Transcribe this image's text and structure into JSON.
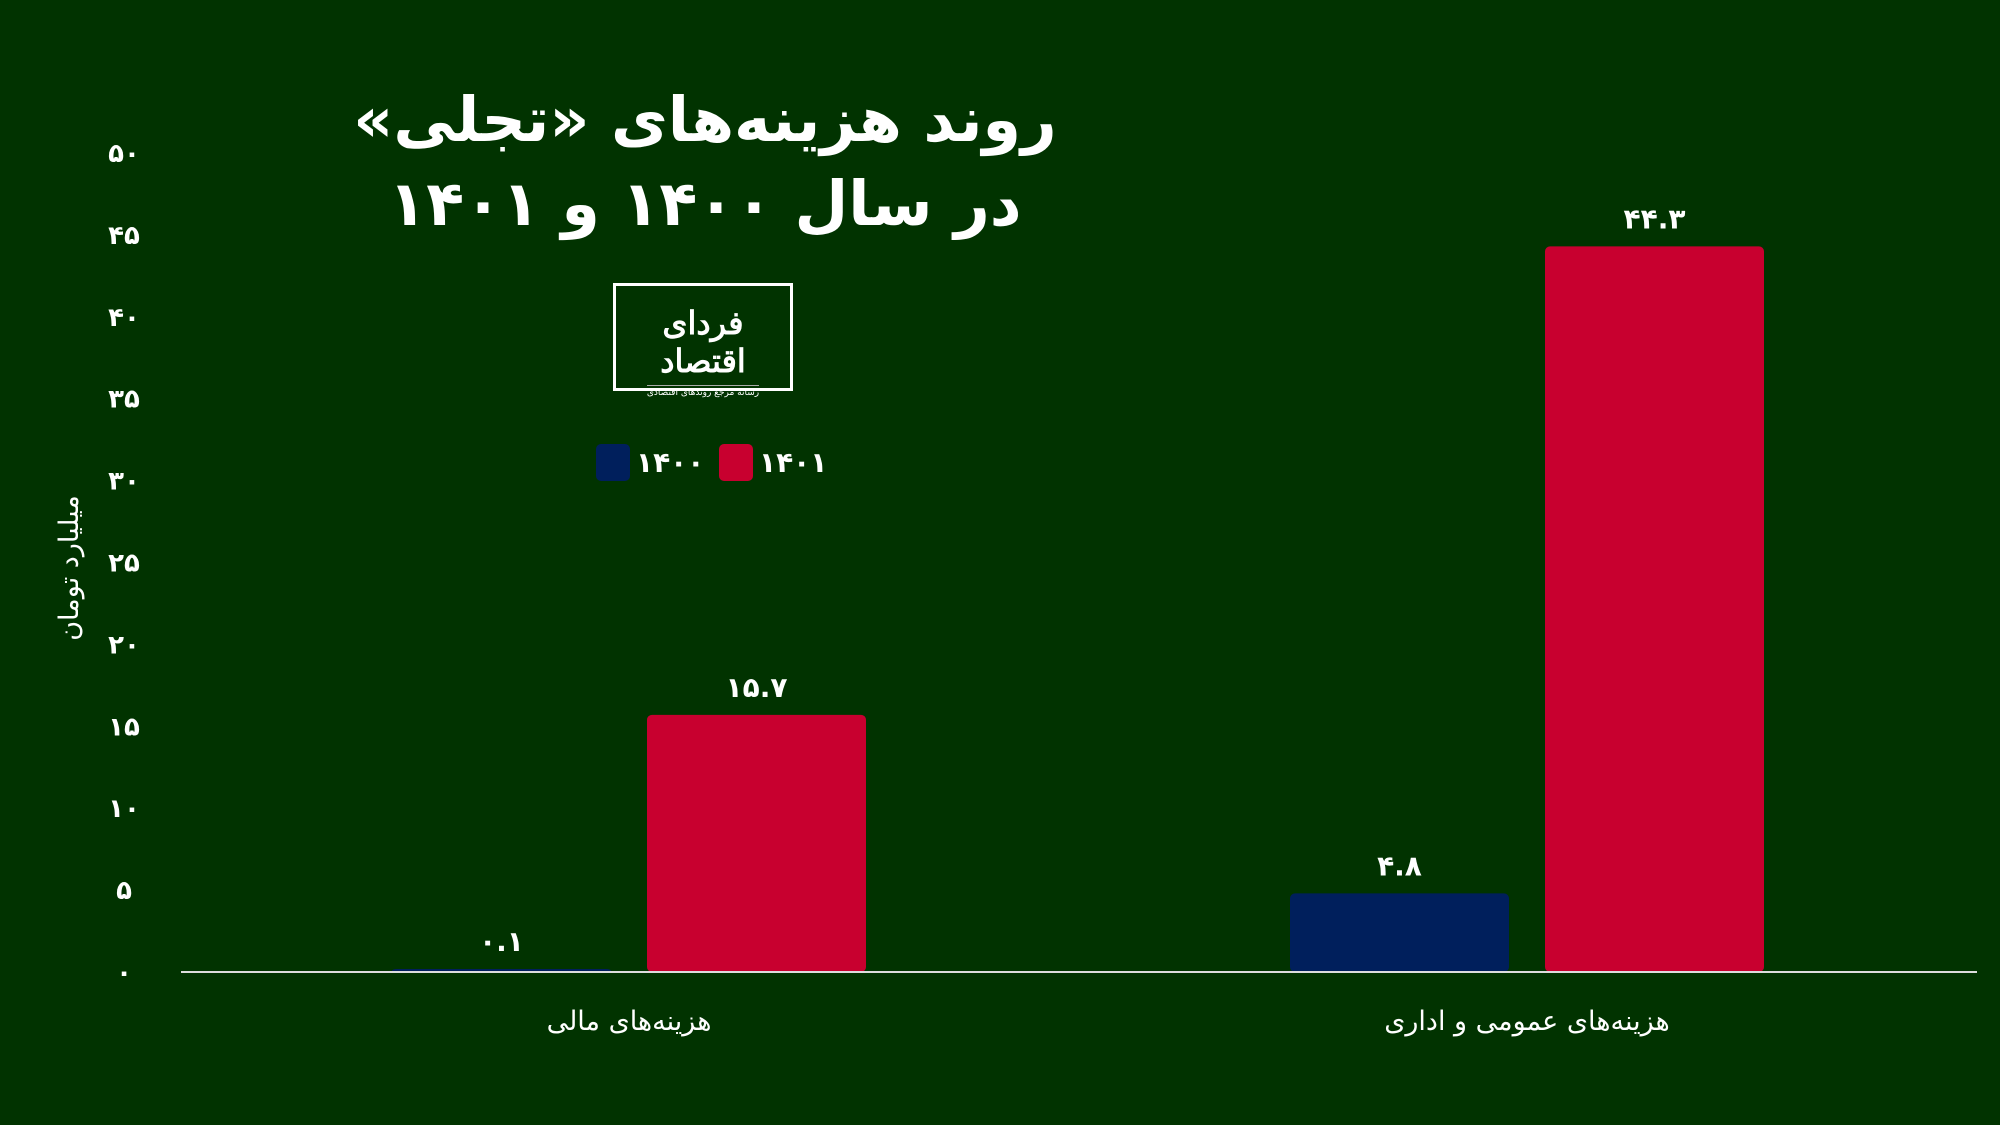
{
  "chart_data": {
    "type": "bar",
    "title": "روند هزینه‌های «تجلی» در سال ۱۴۰۰ و ۱۴۰۱",
    "title_lines": [
      "روند هزینه‌های «تجلی»",
      "در سال ۱۴۰۰ و ۱۴۰۱"
    ],
    "ylabel": "میلیارد تومان",
    "xlabel": "",
    "ylim": [
      0,
      50
    ],
    "yticks": [
      0,
      5,
      10,
      15,
      20,
      25,
      30,
      35,
      40,
      45,
      50
    ],
    "ytick_labels": [
      "۰",
      "۵",
      "۱۰",
      "۱۵",
      "۲۰",
      "۲۵",
      "۳۰",
      "۳۵",
      "۴۰",
      "۴۵",
      "۵۰"
    ],
    "categories": [
      "هزینه‌های مالی",
      "هزینه‌های عمومی و اداری"
    ],
    "series": [
      {
        "name": "۱۴۰۰",
        "color": "#001f5c",
        "values": [
          0.1,
          4.8
        ],
        "labels": [
          "۰.۱",
          "۴.۸"
        ]
      },
      {
        "name": "۱۴۰۱",
        "color": "#c8002f",
        "values": [
          15.7,
          44.3
        ],
        "labels": [
          "۱۵.۷",
          "۴۴.۳"
        ]
      }
    ],
    "legend_position": "top-left",
    "grid": false
  },
  "logo": {
    "text": "فردای اقتصاد",
    "tagline": "رسانه مرجع روندهای اقتصادی"
  },
  "colors": {
    "background": "#013300",
    "axis": "#dddddd"
  }
}
